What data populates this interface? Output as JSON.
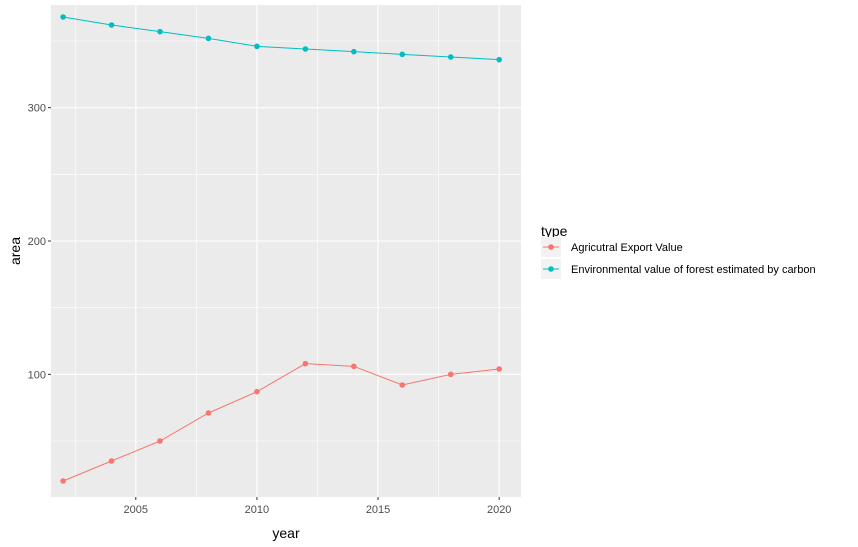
{
  "chart_data": {
    "type": "line",
    "xlabel": "year",
    "ylabel": "area",
    "xlim": [
      2001.5,
      2020.9
    ],
    "ylim": [
      8,
      377
    ],
    "x_ticks": [
      2005,
      2010,
      2015,
      2020
    ],
    "y_ticks": [
      100,
      200,
      300
    ],
    "grid": true,
    "legend_position": "right",
    "legend_title": "type",
    "x": [
      2002,
      2004,
      2006,
      2008,
      2010,
      2012,
      2014,
      2016,
      2018,
      2020
    ],
    "series": [
      {
        "name": "Agricutral Export Value",
        "color": "#F8766D",
        "values": [
          20,
          35,
          50,
          71,
          87,
          108,
          106,
          92,
          100,
          104
        ]
      },
      {
        "name": "Environmental value of forest estimated by carbon",
        "color": "#00BFC4",
        "values": [
          368,
          362,
          357,
          352,
          346,
          344,
          342,
          340,
          338,
          336
        ]
      }
    ]
  }
}
